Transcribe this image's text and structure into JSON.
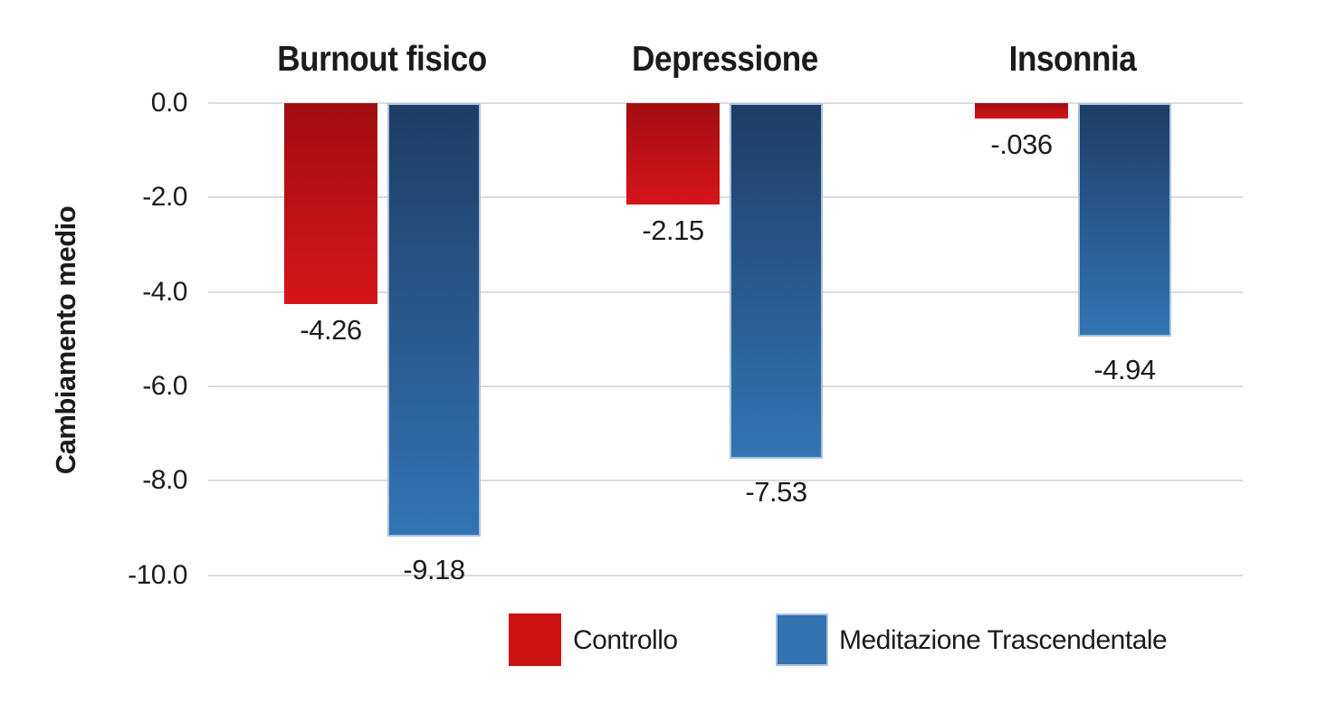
{
  "chart_data": {
    "type": "bar",
    "title": "",
    "xlabel": "",
    "ylabel": "Cambiamento medio",
    "ylim": [
      -10,
      0
    ],
    "grid": "horizontal",
    "legend_position": "bottom",
    "categories": [
      "Burnout fisico",
      "Depressione",
      "Insonnia"
    ],
    "series": [
      {
        "name": "Controllo",
        "values": [
          -4.26,
          -2.15,
          -0.036
        ],
        "labels": [
          "-4.26",
          "-2.15",
          "-.036"
        ],
        "color": "#cc1112",
        "gradient_top": "#a10d11",
        "gradient_bottom": "#d5151a",
        "border": ""
      },
      {
        "name": "Meditazione Trascendentale",
        "values": [
          -9.18,
          -7.53,
          -4.94
        ],
        "labels": [
          "-9.18",
          "-7.53",
          "-4.94"
        ],
        "color": "#3272ae",
        "gradient_top": "#1e3d65",
        "gradient_bottom": "#3374b4",
        "border": "#a9c3de"
      }
    ],
    "yticks": {
      "values": [
        0,
        -2,
        -4,
        -6,
        -8,
        -10
      ],
      "labels": [
        "0.0",
        "-2.0",
        "-4.0",
        "-6.0",
        "-8.0",
        "-10.0"
      ]
    },
    "colors": {
      "background": "#ffffff",
      "gridline": "#d9dce1",
      "text": "#1b1b1b"
    }
  }
}
